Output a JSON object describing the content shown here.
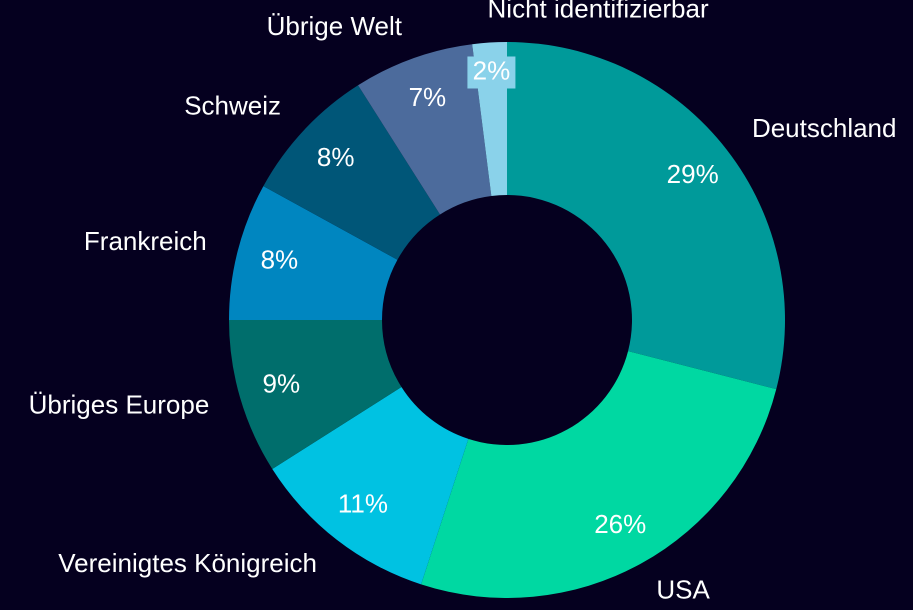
{
  "chart_data": {
    "type": "donut",
    "categories": [
      "Deutschland",
      "USA",
      "Vereinigtes Königreich",
      "Übriges Europe",
      "Frankreich",
      "Schweiz",
      "Übrige Welt",
      "Nicht identifizierbar"
    ],
    "values": [
      29,
      26,
      11,
      9,
      8,
      8,
      7,
      2
    ],
    "value_labels": [
      "29%",
      "26%",
      "11%",
      "9%",
      "8%",
      "8%",
      "7%",
      "2%"
    ],
    "colors": [
      "#009a9a",
      "#00d8a2",
      "#00c2e2",
      "#006e6c",
      "#0086c0",
      "#005678",
      "#4c6b9c",
      "#8ad2ea"
    ]
  }
}
